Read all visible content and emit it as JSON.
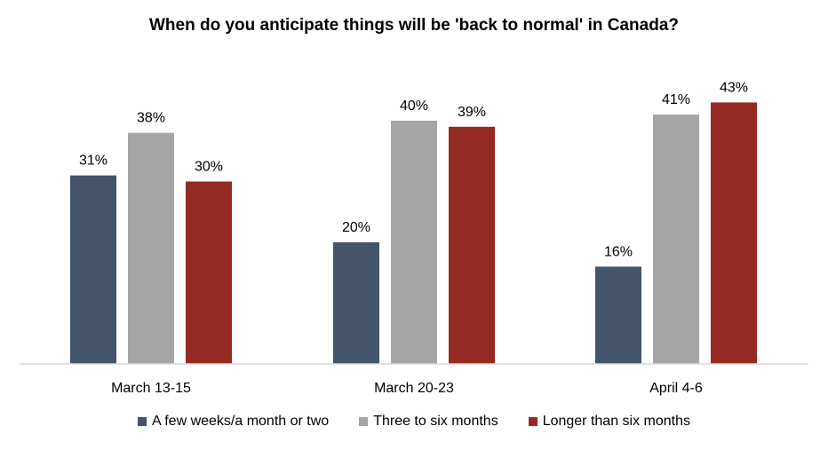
{
  "chart_data": {
    "type": "bar",
    "title": "When do you anticipate things will be 'back to normal' in Canada?",
    "categories": [
      "March 13-15",
      "March 20-23",
      "April 4-6"
    ],
    "series": [
      {
        "name": "A few weeks/a month or two",
        "values": [
          31,
          20,
          16
        ],
        "labels": [
          "31%",
          "20%",
          "16%"
        ],
        "color": "#44546a"
      },
      {
        "name": "Three to six months",
        "values": [
          38,
          40,
          41
        ],
        "labels": [
          "38%",
          "40%",
          "41%"
        ],
        "color": "#a5a5a5"
      },
      {
        "name": "Longer than six months",
        "values": [
          30,
          39,
          43
        ],
        "labels": [
          "30%",
          "39%",
          "43%"
        ],
        "color": "#952a22"
      }
    ],
    "ylim": [
      0,
      45
    ],
    "grid": false,
    "legend": "bottom"
  }
}
